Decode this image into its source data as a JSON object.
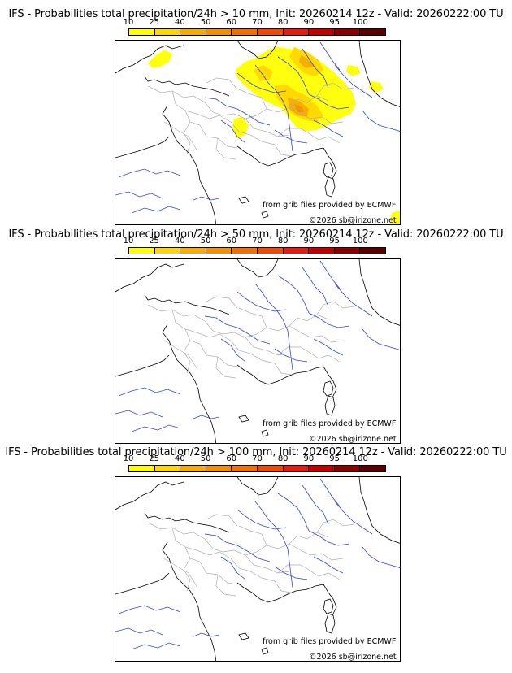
{
  "panels": [
    {
      "title": "IFS - Probabilities total precipitation/24h > 10 mm, Init: 20260214 12z - Valid: 20260222:00 TU",
      "credit_source": "from grib files provided by ECMWF",
      "credit_copyright": "©2026 sb@irizone.net",
      "precip_shown": true
    },
    {
      "title": "IFS - Probabilities total precipitation/24h > 50 mm, Init: 20260214 12z - Valid: 20260222:00 TU",
      "credit_source": "from grib files provided by ECMWF",
      "credit_copyright": "©2026 sb@irizone.net",
      "precip_shown": false
    },
    {
      "title": "IFS - Probabilities total precipitation/24h > 100 mm, Init: 20260214 12z - Valid: 20260222:00 TU",
      "credit_source": "from grib files provided by ECMWF",
      "credit_copyright": "©2026 sb@irizone.net",
      "precip_shown": false
    }
  ],
  "colorbar": {
    "ticks": [
      "10",
      "25",
      "40",
      "50",
      "60",
      "70",
      "80",
      "90",
      "95",
      "100"
    ],
    "colors": [
      "#ffff00",
      "#ffd700",
      "#f5ad00",
      "#f29100",
      "#f07000",
      "#ee4a00",
      "#e51d10",
      "#c20000",
      "#8b0000",
      "#5a0000"
    ]
  },
  "map_colors": {
    "coast": "#000000",
    "rivers": "#3344dd",
    "admin": "#b0b0b0",
    "prob_10": "#ffff00",
    "prob_25": "#ffd700",
    "prob_40": "#f5ad00",
    "prob_50": "#f29100"
  }
}
